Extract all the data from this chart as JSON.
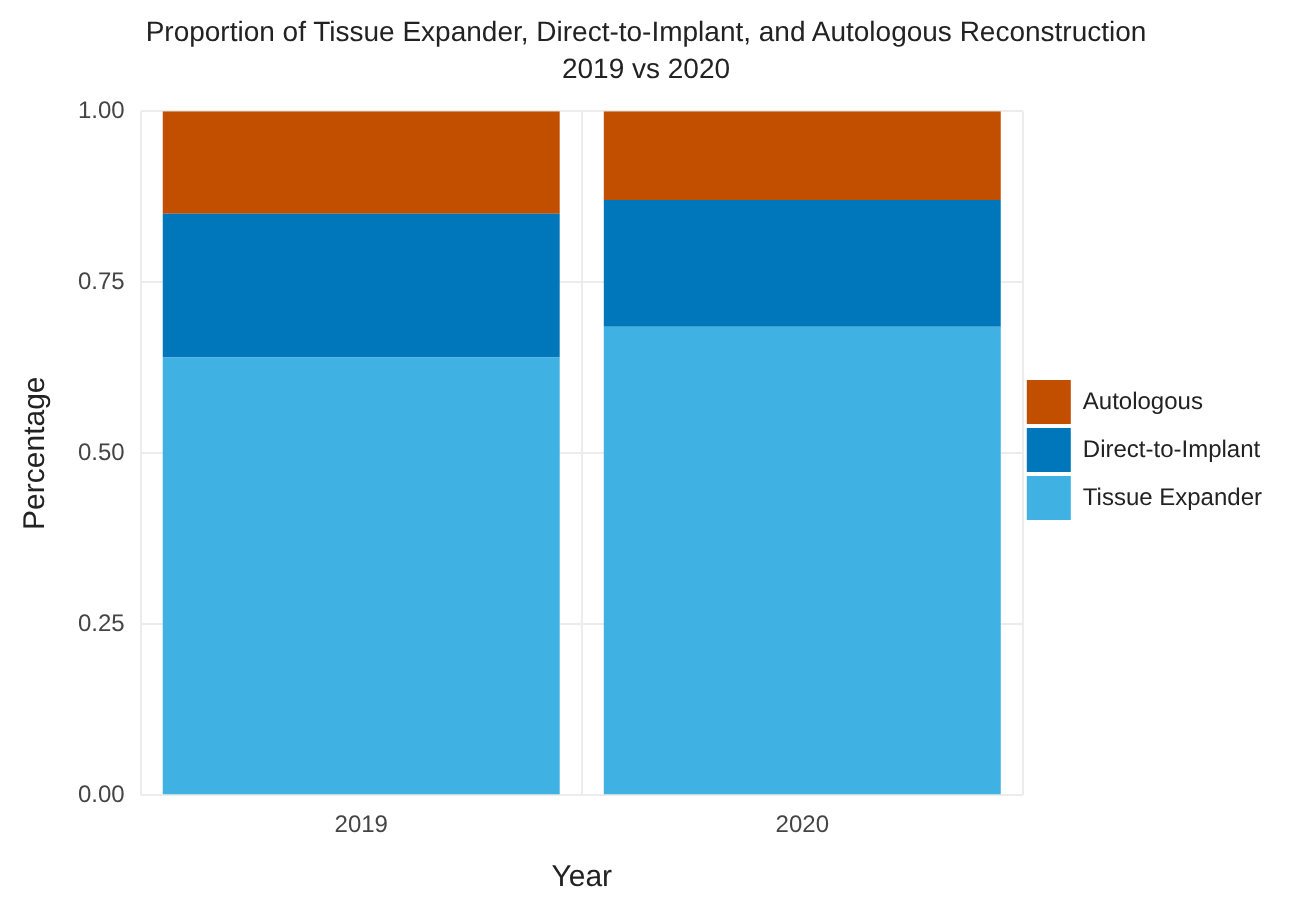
{
  "chart_data": {
    "type": "bar",
    "title": "Proportion of Tissue Expander, Direct-to-Implant, and Autologous Reconstruction",
    "subtitle": "2019 vs 2020",
    "xlabel": "Year",
    "ylabel": "Percentage",
    "categories": [
      "2019",
      "2020"
    ],
    "stacked": true,
    "series": [
      {
        "name": "Tissue Expander",
        "color": "#3fb1e3",
        "values": [
          0.64,
          0.685
        ]
      },
      {
        "name": "Direct-to-Implant",
        "color": "#0077bb",
        "values": [
          0.21,
          0.185
        ]
      },
      {
        "name": "Autologous",
        "color": "#c24e00",
        "values": [
          0.15,
          0.13
        ]
      }
    ],
    "ylim": [
      0,
      1
    ],
    "yticks": [
      {
        "value": 0,
        "label": "0.00"
      },
      {
        "value": 0.25,
        "label": "0.25"
      },
      {
        "value": 0.5,
        "label": "0.50"
      },
      {
        "value": 0.75,
        "label": "0.75"
      },
      {
        "value": 1,
        "label": "1.00"
      }
    ],
    "grid": true,
    "legend": "right"
  }
}
